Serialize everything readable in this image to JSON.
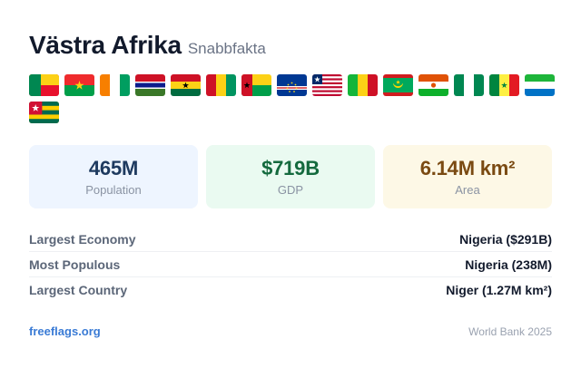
{
  "header": {
    "title": "Västra Afrika",
    "subtitle": "Snabbfakta"
  },
  "flags": [
    "benin",
    "burkina-faso",
    "cote-divoire",
    "gambia",
    "ghana",
    "guinea",
    "guinea-bissau",
    "cape-verde",
    "liberia",
    "mali",
    "mauritania",
    "niger",
    "nigeria",
    "senegal",
    "sierra-leone",
    "togo"
  ],
  "stats": [
    {
      "value": "465M",
      "label": "Population",
      "bg": "#eef5ff",
      "color": "#1e3a5f"
    },
    {
      "value": "$719B",
      "label": "GDP",
      "bg": "#eafaf1",
      "color": "#146a3e"
    },
    {
      "value": "6.14M km²",
      "label": "Area",
      "bg": "#fdf8e6",
      "color": "#7a4a12"
    }
  ],
  "facts": [
    {
      "key": "Largest Economy",
      "value": "Nigeria ($291B)"
    },
    {
      "key": "Most Populous",
      "value": "Nigeria (238M)"
    },
    {
      "key": "Largest Country",
      "value": "Niger (1.27M km²)"
    }
  ],
  "footer": {
    "link": "freeflags.org",
    "source": "World Bank 2025"
  }
}
